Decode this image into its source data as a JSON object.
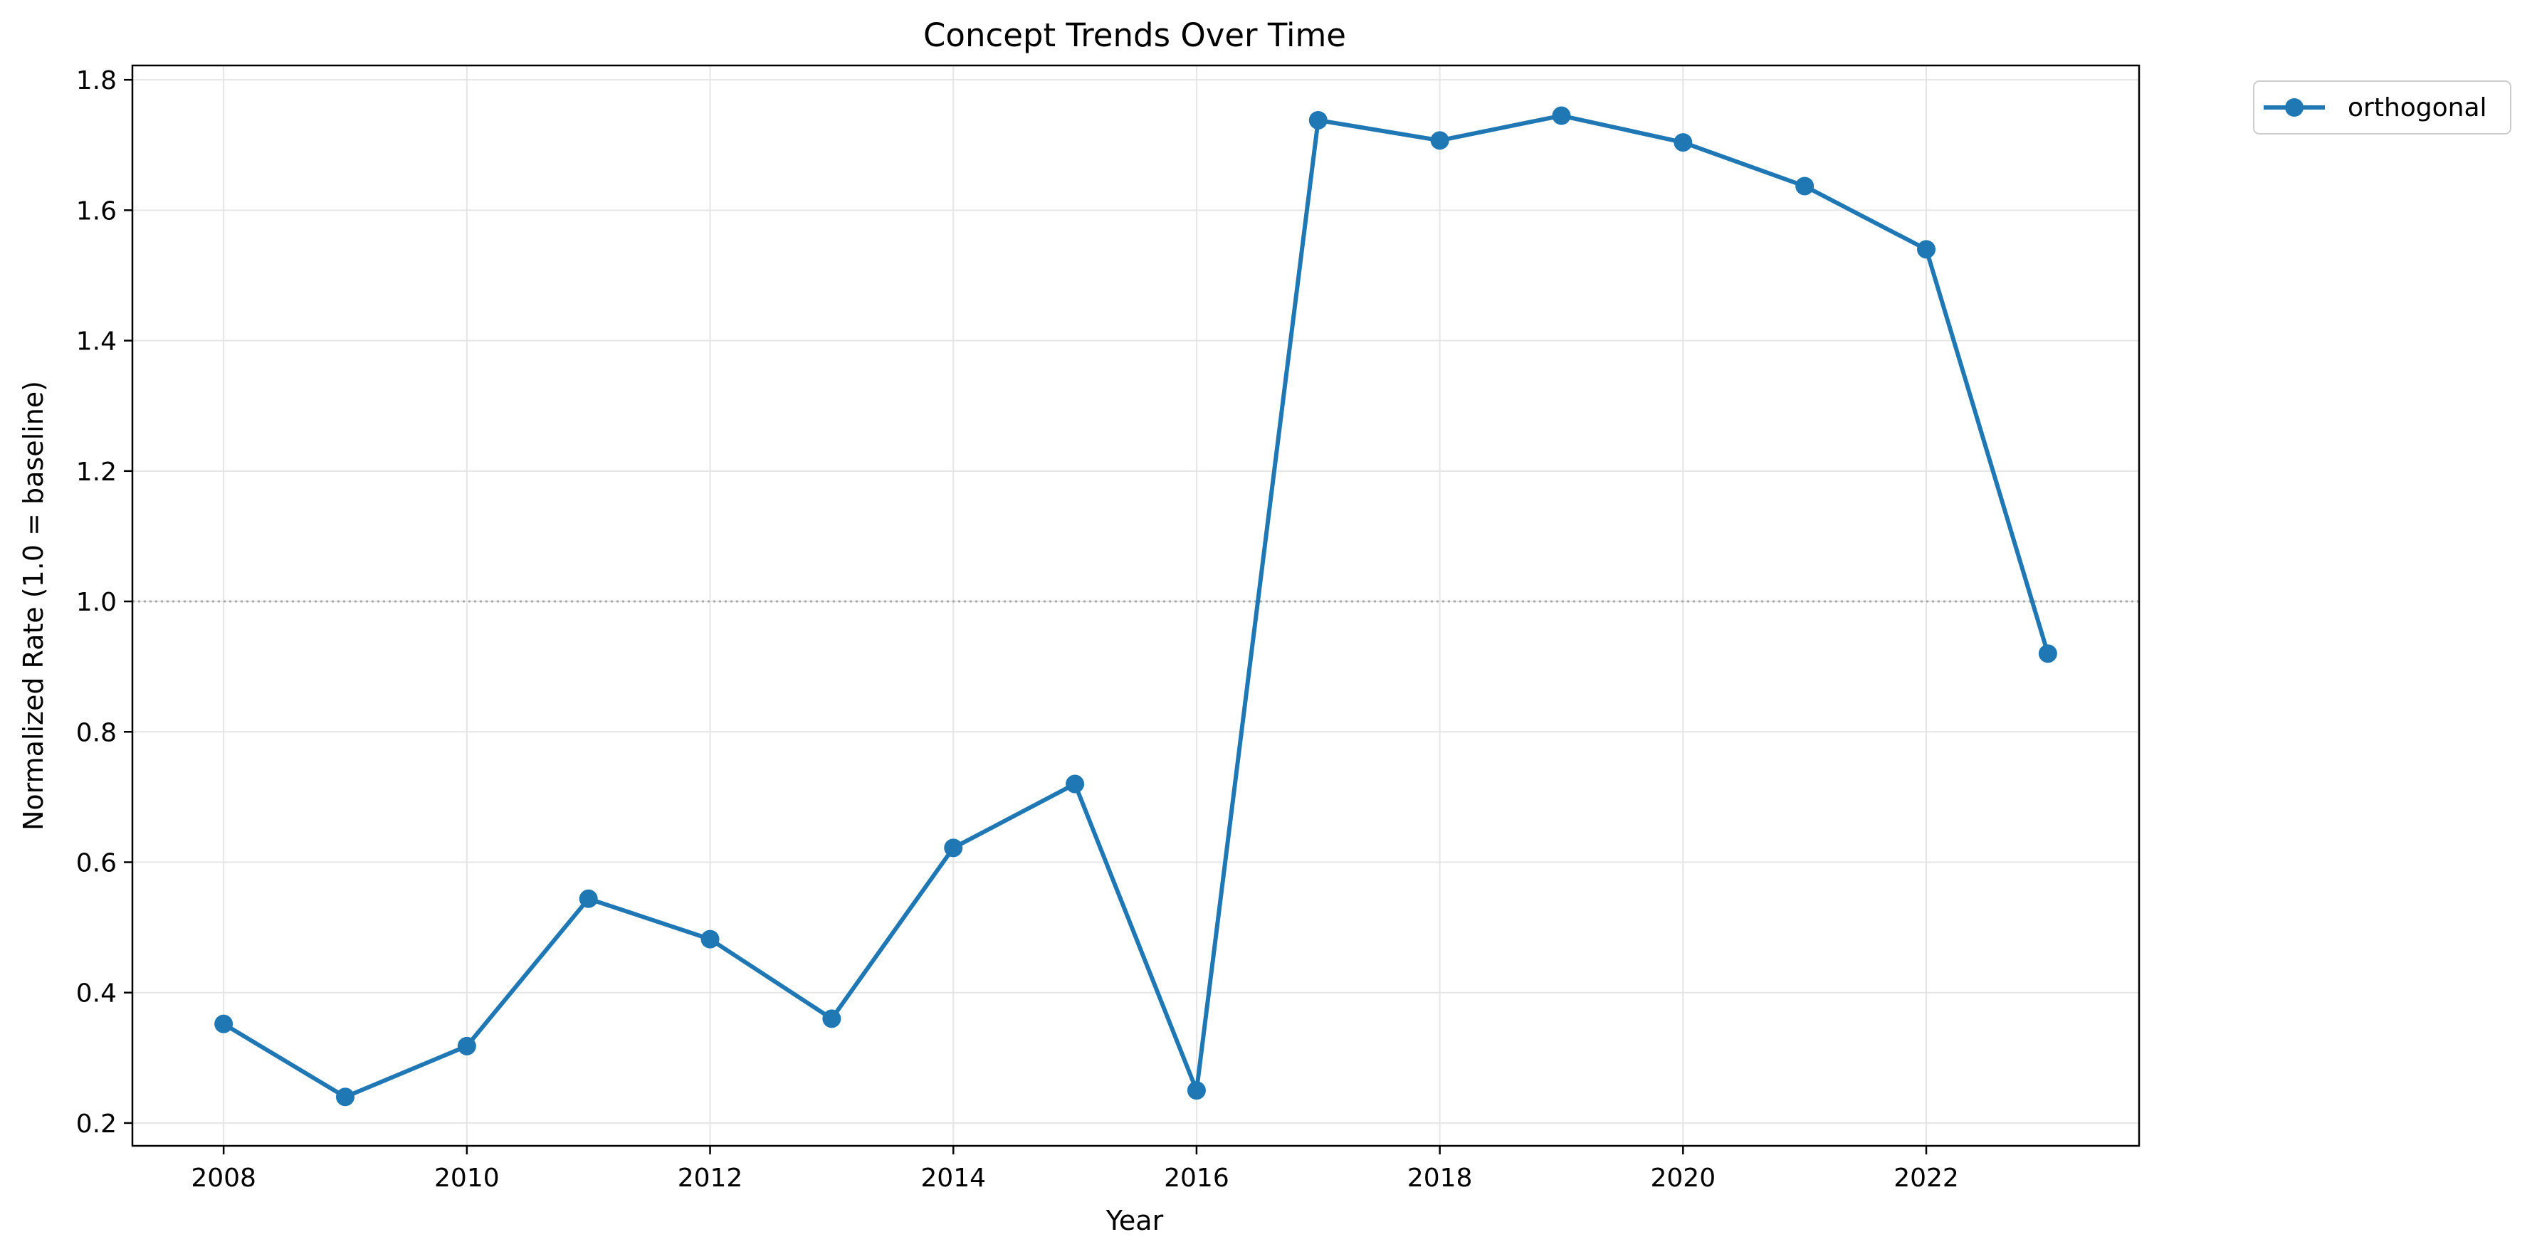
{
  "chart_data": {
    "type": "line",
    "title": "Concept Trends Over Time",
    "xlabel": "Year",
    "ylabel": "Normalized Rate (1.0 = baseline)",
    "x": [
      2008,
      2009,
      2010,
      2011,
      2012,
      2013,
      2014,
      2015,
      2016,
      2017,
      2018,
      2019,
      2020,
      2021,
      2022,
      2023
    ],
    "series": [
      {
        "name": "orthogonal",
        "color": "#1f77b4",
        "marker": "circle",
        "values": [
          0.352,
          0.24,
          0.318,
          0.544,
          0.482,
          0.36,
          0.622,
          0.72,
          0.25,
          1.738,
          1.707,
          1.745,
          1.704,
          1.637,
          1.54,
          0.92
        ]
      }
    ],
    "xlim": [
      2007.25,
      2023.75
    ],
    "ylim": [
      0.165,
      1.822
    ],
    "xticks": [
      2008,
      2010,
      2012,
      2014,
      2016,
      2018,
      2020,
      2022
    ],
    "xtick_labels": [
      "2008",
      "2010",
      "2012",
      "2014",
      "2016",
      "2018",
      "2020",
      "2022"
    ],
    "yticks": [
      0.2,
      0.4,
      0.6,
      0.8,
      1.0,
      1.2,
      1.4,
      1.6,
      1.8
    ],
    "ytick_labels": [
      "0.2",
      "0.4",
      "0.6",
      "0.8",
      "1.0",
      "1.2",
      "1.4",
      "1.6",
      "1.8"
    ],
    "reference_line": {
      "y": 1.0,
      "style": "dotted",
      "color": "#999999"
    },
    "grid": true,
    "legend": {
      "placement": "outside-top-right"
    }
  }
}
